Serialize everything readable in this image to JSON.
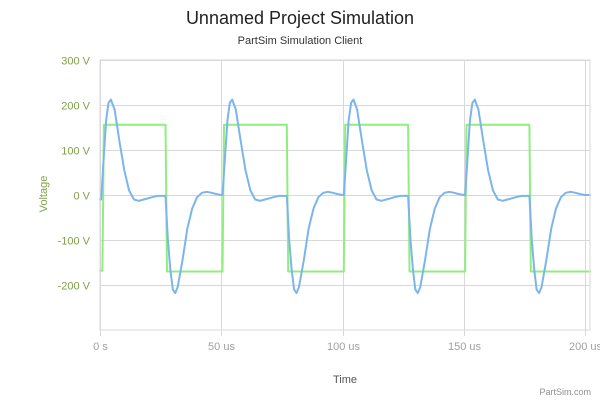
{
  "title": "Unnamed Project Simulation",
  "subtitle": "PartSim Simulation Client",
  "credit": "PartSim.com",
  "colors": {
    "series_square": "#90ee7e",
    "series_response": "#7cb5ec",
    "y_axis_text": "#7fa24a",
    "x_axis_text": "#a0a0a0",
    "grid": "#d8d8d8"
  },
  "chart_data": {
    "type": "line",
    "title": "Unnamed Project Simulation",
    "subtitle": "PartSim Simulation Client",
    "xlabel": "Time",
    "ylabel": "Voltage",
    "xunit": "us",
    "yunit": "V",
    "xlim": [
      0,
      202
    ],
    "ylim": [
      -300,
      300
    ],
    "xticks": [
      0,
      50,
      100,
      150,
      200
    ],
    "xtick_labels": [
      "0 s",
      "50 us",
      "100 us",
      "150 us",
      "200 us"
    ],
    "yticks": [
      300,
      200,
      100,
      0,
      -100,
      -200
    ],
    "ytick_labels": [
      "300 V",
      "200 V",
      "100 V",
      "0 V",
      "-100 V",
      "-200 V"
    ],
    "grid": true,
    "legend": "none",
    "period_us": 50,
    "series": [
      {
        "color": "#90ee7e",
        "x": [
          0,
          1,
          1.6,
          27,
          27.6,
          50.5,
          51.1,
          77,
          77.6,
          100.5,
          101.1,
          127,
          127.6,
          150.5,
          151.1,
          177,
          177.6,
          202
        ],
        "y": [
          -168,
          -168,
          156,
          156,
          -170,
          -170,
          156,
          156,
          -170,
          -170,
          156,
          156,
          -170,
          -170,
          156,
          156,
          -170,
          -170
        ]
      },
      {
        "color": "#7cb5ec",
        "x": [
          0,
          0.5,
          1.5,
          2.5,
          3.5,
          4.5,
          6,
          8,
          10,
          12,
          14,
          16,
          18,
          20,
          22,
          24,
          26,
          27,
          28,
          29,
          30,
          31,
          32,
          34,
          36,
          38,
          40,
          42,
          44,
          46,
          48,
          50,
          50.5,
          51.5,
          52.5,
          53.5,
          54.5,
          56,
          58,
          60,
          62,
          64,
          66,
          68,
          70,
          72,
          74,
          76,
          77,
          78,
          79,
          80,
          81,
          82,
          84,
          86,
          88,
          90,
          92,
          94,
          96,
          98,
          100,
          100.5,
          101.5,
          102.5,
          103.5,
          104.5,
          106,
          108,
          110,
          112,
          114,
          116,
          118,
          120,
          122,
          124,
          126,
          127,
          128,
          129,
          130,
          131,
          132,
          134,
          136,
          138,
          140,
          142,
          144,
          146,
          148,
          150,
          150.5,
          151.5,
          152.5,
          153.5,
          154.5,
          156,
          158,
          160,
          162,
          164,
          166,
          168,
          170,
          172,
          174,
          176,
          177,
          178,
          179,
          180,
          181,
          182,
          184,
          186,
          188,
          190,
          192,
          194,
          196,
          198,
          200,
          202
        ],
        "y": [
          -10,
          -10,
          80,
          165,
          205,
          212,
          190,
          120,
          55,
          10,
          -10,
          -13,
          -10,
          -7,
          -4,
          -2,
          -2,
          -2,
          -100,
          -165,
          -210,
          -218,
          -205,
          -145,
          -75,
          -30,
          -5,
          5,
          7,
          5,
          2,
          0,
          0,
          80,
          165,
          205,
          212,
          190,
          120,
          55,
          10,
          -10,
          -13,
          -10,
          -7,
          -4,
          -2,
          -2,
          -2,
          -100,
          -165,
          -210,
          -218,
          -205,
          -145,
          -75,
          -30,
          -5,
          5,
          7,
          5,
          2,
          0,
          0,
          80,
          165,
          205,
          212,
          190,
          120,
          55,
          10,
          -10,
          -13,
          -10,
          -7,
          -4,
          -2,
          -2,
          -2,
          -100,
          -165,
          -210,
          -218,
          -205,
          -145,
          -75,
          -30,
          -5,
          5,
          7,
          5,
          2,
          0,
          0,
          80,
          165,
          205,
          212,
          190,
          120,
          55,
          10,
          -10,
          -13,
          -10,
          -7,
          -4,
          -2,
          -2,
          -2,
          -100,
          -165,
          -210,
          -218,
          -205,
          -145,
          -75,
          -30,
          -5,
          5,
          7,
          5,
          2,
          0,
          0
        ]
      }
    ]
  }
}
